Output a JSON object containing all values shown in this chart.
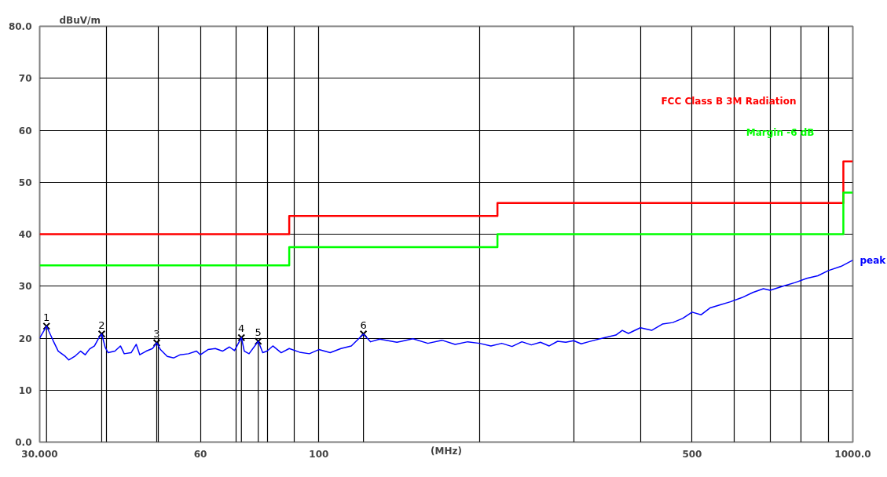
{
  "chart_data": {
    "type": "line",
    "xlabel": "(MHz)",
    "ylabel": "dBuV/m",
    "log": "x",
    "grid": true,
    "legend": false,
    "xlim": [
      30,
      1000
    ],
    "ylim": [
      0,
      80
    ],
    "xticks": [
      {
        "value": 30,
        "label": "30.000"
      },
      {
        "value": 40,
        "label": null
      },
      {
        "value": 50,
        "label": null
      },
      60,
      {
        "value": 70,
        "label": null
      },
      {
        "value": 80,
        "label": null
      },
      {
        "value": 90,
        "label": null
      },
      100,
      {
        "value": 200,
        "label": null
      },
      {
        "value": 300,
        "label": null
      },
      {
        "value": 400,
        "label": null
      },
      500,
      {
        "value": 600,
        "label": null
      },
      {
        "value": 700,
        "label": null
      },
      {
        "value": 800,
        "label": null
      },
      {
        "value": 900,
        "label": null
      },
      {
        "value": 1000,
        "label": "1000.0"
      }
    ],
    "yticks": [
      {
        "value": 0,
        "label": "0.0"
      },
      10,
      20,
      30,
      40,
      50,
      60,
      70,
      {
        "value": 80,
        "label": "80.0"
      }
    ],
    "series": [
      {
        "name": "FCC Class B 3M Radiation",
        "type": "step",
        "color": "#ff0000",
        "x": [
          30,
          88,
          216,
          960,
          1000
        ],
        "values": [
          40,
          43.5,
          46,
          54,
          54
        ]
      },
      {
        "name": "Margin -6 dB",
        "type": "step",
        "color": "#00ff00",
        "x": [
          30,
          88,
          216,
          960,
          1000
        ],
        "values": [
          34,
          37.5,
          40,
          48,
          48
        ]
      },
      {
        "name": "peak",
        "color": "#0000ff",
        "x": [
          30,
          30.9,
          31.8,
          32.5,
          33.5,
          34,
          35,
          35.8,
          36.5,
          37.2,
          38,
          38.6,
          39.2,
          39.8,
          40.3,
          41.5,
          42.5,
          43.2,
          44.5,
          45.5,
          46.2,
          47.5,
          48.8,
          49.7,
          50.5,
          52,
          53.5,
          55,
          57,
          59,
          60,
          62,
          64,
          66,
          68,
          69.5,
          71.6,
          72.5,
          74,
          77,
          78.5,
          80,
          82,
          85,
          88,
          92,
          96,
          100,
          105,
          110,
          115,
          121.2,
          125,
          130,
          140,
          150,
          160,
          170,
          180,
          190,
          200,
          210,
          220,
          230,
          240,
          250,
          260,
          270,
          280,
          290,
          300,
          310,
          320,
          340,
          360,
          370,
          380,
          400,
          420,
          440,
          460,
          480,
          500,
          520,
          540,
          560,
          590,
          620,
          650,
          680,
          700,
          740,
          780,
          820,
          860,
          900,
          950,
          1000
        ],
        "values": [
          20,
          22.3,
          19.5,
          17.5,
          16.5,
          15.8,
          16.6,
          17.5,
          16.8,
          17.9,
          18.5,
          19.8,
          20.8,
          18.2,
          17.2,
          17.5,
          18.5,
          17.0,
          17.2,
          18.8,
          16.8,
          17.5,
          18.0,
          19.1,
          17.8,
          16.5,
          16.2,
          16.8,
          17.0,
          17.5,
          16.8,
          17.8,
          18.0,
          17.5,
          18.3,
          17.6,
          20.1,
          17.5,
          17.0,
          19.4,
          17.2,
          17.5,
          18.5,
          17.2,
          18.0,
          17.3,
          17.0,
          17.8,
          17.2,
          18.0,
          18.5,
          20.8,
          19.3,
          19.8,
          19.2,
          19.9,
          19.0,
          19.6,
          18.8,
          19.3,
          19.0,
          18.5,
          19.0,
          18.4,
          19.3,
          18.7,
          19.2,
          18.5,
          19.4,
          19.2,
          19.5,
          18.9,
          19.3,
          20.0,
          20.6,
          21.5,
          20.9,
          22.0,
          21.5,
          22.7,
          23.0,
          23.8,
          25.0,
          24.5,
          25.8,
          26.3,
          27.0,
          27.8,
          28.8,
          29.5,
          29.2,
          30.0,
          30.7,
          31.5,
          32.0,
          33.0,
          33.8,
          35.0
        ]
      },
      {
        "type": "lollipop",
        "color": "#000000",
        "marker": "cross",
        "x": [
          30.9,
          39.2,
          49.7,
          71.6,
          77.0,
          121.2
        ],
        "values": [
          22.3,
          20.8,
          19.1,
          20.1,
          19.4,
          20.8
        ]
      }
    ],
    "annotations": [
      {
        "text": "1",
        "x": 30.9,
        "y": 22.3
      },
      {
        "text": "2",
        "x": 39.2,
        "y": 20.8
      },
      {
        "text": "3",
        "x": 49.7,
        "y": 19.1
      },
      {
        "text": "4",
        "x": 71.6,
        "y": 20.1
      },
      {
        "text": "5",
        "x": 77.0,
        "y": 19.4
      },
      {
        "text": "6",
        "x": 121.2,
        "y": 20.8
      }
    ]
  }
}
